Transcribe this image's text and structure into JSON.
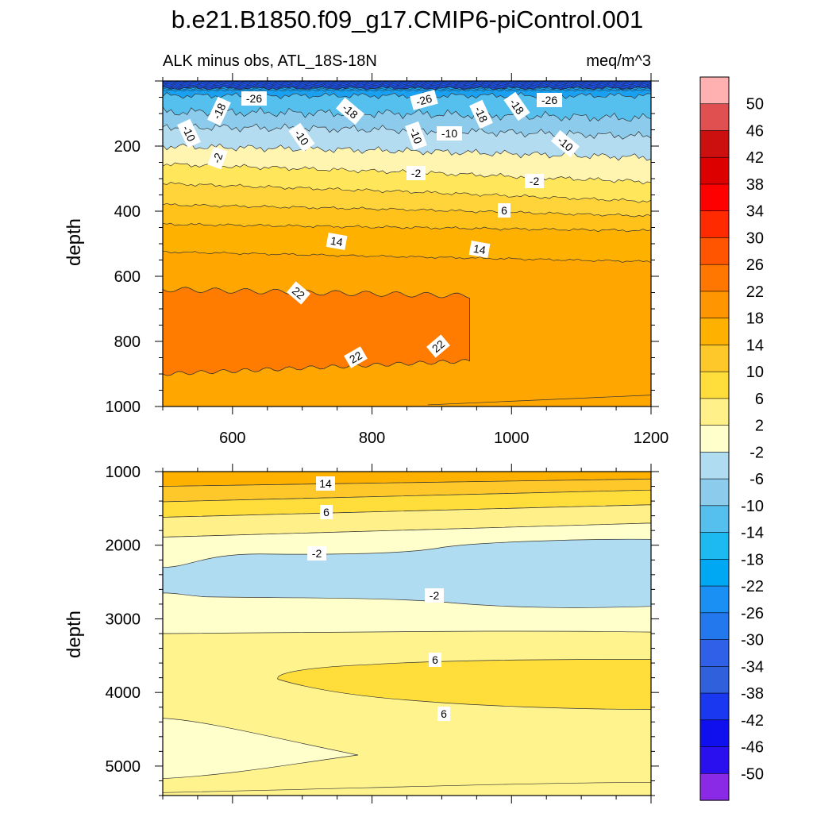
{
  "figure": {
    "title": "b.e21.B1850.f09_g17.CMIP6-piControl.001"
  },
  "colorbar": {
    "levels": [
      "50",
      "46",
      "42",
      "38",
      "34",
      "30",
      "26",
      "22",
      "18",
      "14",
      "10",
      "6",
      "2",
      "-2",
      "-6",
      "-10",
      "-14",
      "-18",
      "-22",
      "-26",
      "-30",
      "-34",
      "-38",
      "-42",
      "-46",
      "-50"
    ],
    "colors": [
      "#ffb0b0",
      "#e05050",
      "#cc1010",
      "#dd0000",
      "#ff0000",
      "#ff2a00",
      "#ff5500",
      "#ff7700",
      "#ff9500",
      "#ffb100",
      "#ffc82a",
      "#ffdd3a",
      "#fff08a",
      "#ffffcc",
      "#b0dcf2",
      "#8ccbec",
      "#55bfee",
      "#1cbaf0",
      "#00a8f4",
      "#1a90f4",
      "#2278ec",
      "#3060e8",
      "#3060dc",
      "#1a38f0",
      "#1010ee",
      "#2a10ee",
      "#8a2ae6"
    ]
  },
  "chart_data": [
    {
      "type": "contour",
      "panel": "upper",
      "title": "",
      "subtitle_left": "ALK minus obs, ATL_18S-18N",
      "subtitle_right": "meq/m^3",
      "xlabel": "",
      "ylabel": "depth",
      "xlim": [
        500,
        1200
      ],
      "ylim": [
        1000,
        0
      ],
      "xticks": [
        "600",
        "800",
        "1000",
        "1200"
      ],
      "yticks": [
        "200",
        "400",
        "600",
        "800",
        "1000"
      ],
      "contour_labels": [
        "-26",
        "-18",
        "-10",
        "-2",
        "-18",
        "-10",
        "-26",
        "-10",
        "-10",
        "-18",
        "-18",
        "-26",
        "-10",
        "-2",
        "-2",
        "6",
        "14",
        "14",
        "22",
        "22",
        "22"
      ],
      "bands_depth_by_x": {
        "x": [
          500,
          850,
          1200
        ],
        "neg26": [
          45,
          45,
          45
        ],
        "neg18": [
          95,
          100,
          115
        ],
        "neg10": [
          140,
          150,
          170
        ],
        "neg2": [
          200,
          215,
          235
        ],
        "pos2": [
          255,
          280,
          310
        ],
        "pos6": [
          315,
          340,
          370
        ],
        "pos10": [
          380,
          395,
          415
        ],
        "pos14": [
          440,
          450,
          460
        ],
        "pos18": [
          525,
          540,
          555
        ],
        "pos22_top": [
          640,
          660,
          700
        ],
        "pos22_bottom": [
          900,
          860,
          790
        ]
      }
    },
    {
      "type": "contour",
      "panel": "lower",
      "title": "",
      "xlabel": "",
      "ylabel": "depth",
      "xlim": [
        500,
        1200
      ],
      "ylim": [
        5400,
        1000
      ],
      "yticks": [
        "1000",
        "2000",
        "3000",
        "4000",
        "5000"
      ],
      "contour_labels": [
        "14",
        "6",
        "-2",
        "-2",
        "6",
        "6"
      ]
    }
  ]
}
